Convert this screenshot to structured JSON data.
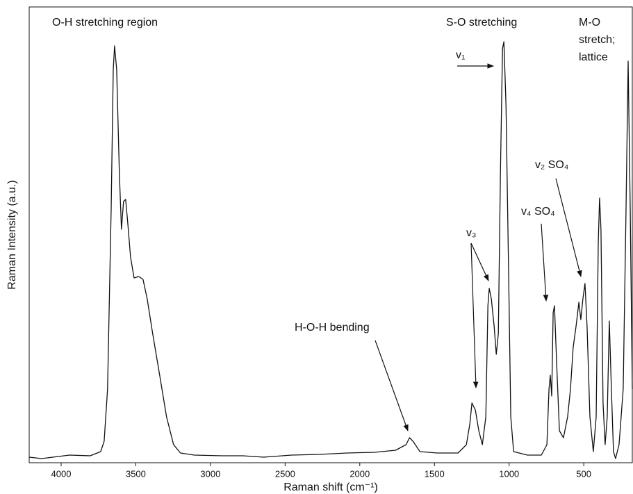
{
  "chart_data": {
    "type": "line",
    "xlabel": "Raman shift (cm⁻¹)",
    "ylabel": "Raman Intensity (a.u.)",
    "annotations": [
      "O-H stretching region",
      "S-O stretching",
      "M-O",
      "stretch;",
      "lattice",
      "H-O-H bending",
      "v₁",
      "v₃",
      "v₄ SO₄",
      "v₂ SO₄"
    ],
    "color": "#111111",
    "xlim": [
      4214,
      175
    ],
    "xticks": [
      4000,
      3500,
      3000,
      2500,
      2000,
      1500,
      1000,
      500
    ],
    "ylim": [
      0,
      656
    ],
    "yticks": [],
    "x": [
      4214,
      4130,
      3944,
      3805,
      3735,
      3712,
      3689,
      3665,
      3651,
      3642,
      3628,
      3610,
      3596,
      3582,
      3568,
      3554,
      3535,
      3512,
      3480,
      3452,
      3424,
      3387,
      3340,
      3294,
      3247,
      3201,
      3108,
      2922,
      2782,
      2643,
      2457,
      2271,
      2085,
      1900,
      1760,
      1690,
      1667,
      1644,
      1597,
      1481,
      1342,
      1286,
      1263,
      1249,
      1226,
      1203,
      1179,
      1156,
      1142,
      1133,
      1119,
      1100,
      1086,
      1072,
      1058,
      1044,
      1035,
      1021,
      1003,
      989,
      970,
      877,
      784,
      747,
      733,
      724,
      715,
      705,
      696,
      682,
      663,
      636,
      608,
      589,
      571,
      552,
      533,
      520,
      506,
      492,
      478,
      459,
      436,
      417,
      403,
      394,
      385,
      371,
      357,
      343,
      329,
      315,
      301,
      287,
      264,
      236,
      217,
      203,
      189,
      175
    ],
    "values": [
      8,
      6,
      11,
      10,
      16,
      31,
      106,
      366,
      566,
      600,
      566,
      416,
      336,
      376,
      379,
      346,
      296,
      266,
      268,
      264,
      236,
      186,
      126,
      66,
      26,
      14,
      11,
      10,
      10,
      8,
      11,
      12,
      14,
      15,
      18,
      26,
      36,
      31,
      16,
      14,
      14,
      26,
      56,
      86,
      76,
      46,
      26,
      66,
      226,
      251,
      236,
      196,
      156,
      186,
      416,
      596,
      606,
      516,
      266,
      66,
      16,
      11,
      11,
      26,
      106,
      126,
      96,
      216,
      226,
      146,
      46,
      36,
      66,
      106,
      166,
      196,
      231,
      206,
      236,
      258,
      196,
      66,
      16,
      66,
      316,
      381,
      336,
      86,
      26,
      66,
      204,
      106,
      16,
      6,
      26,
      106,
      366,
      578,
      366,
      106
    ]
  }
}
